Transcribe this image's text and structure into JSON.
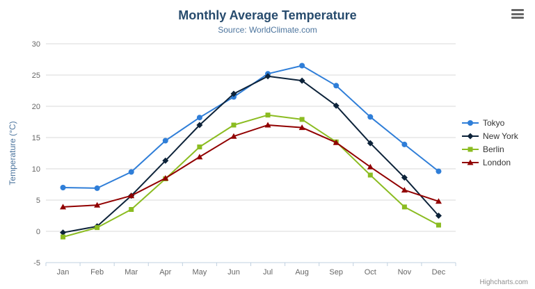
{
  "header": {
    "title": "Monthly Average Temperature",
    "subtitle": "Source: WorldClimate.com"
  },
  "credits": "Highcharts.com",
  "chart_data": {
    "type": "line",
    "title": "Monthly Average Temperature",
    "subtitle": "Source: WorldClimate.com",
    "xlabel": "",
    "ylabel": "Temperature (°C)",
    "ylim": [
      -5,
      30
    ],
    "y_tick_interval": 5,
    "grid": true,
    "legend_position": "right",
    "categories": [
      "Jan",
      "Feb",
      "Mar",
      "Apr",
      "May",
      "Jun",
      "Jul",
      "Aug",
      "Sep",
      "Oct",
      "Nov",
      "Dec"
    ],
    "series": [
      {
        "name": "Tokyo",
        "color": "#2f7ed8",
        "marker": "circle",
        "values": [
          7.0,
          6.9,
          9.5,
          14.5,
          18.2,
          21.5,
          25.2,
          26.5,
          23.3,
          18.3,
          13.9,
          9.6
        ]
      },
      {
        "name": "New York",
        "color": "#0d233a",
        "marker": "diamond",
        "values": [
          -0.2,
          0.8,
          5.7,
          11.3,
          17.0,
          22.0,
          24.8,
          24.1,
          20.1,
          14.1,
          8.6,
          2.5
        ]
      },
      {
        "name": "Berlin",
        "color": "#8bbc21",
        "marker": "square",
        "values": [
          -0.9,
          0.6,
          3.5,
          8.4,
          13.5,
          17.0,
          18.6,
          17.9,
          14.3,
          9.0,
          3.9,
          1.0
        ]
      },
      {
        "name": "London",
        "color": "#910000",
        "marker": "triangle",
        "values": [
          3.9,
          4.2,
          5.7,
          8.5,
          11.9,
          15.2,
          17.0,
          16.6,
          14.2,
          10.3,
          6.6,
          4.8
        ]
      }
    ],
    "colors": {
      "title": "#274b6d",
      "subtitle": "#4d759e",
      "axis_label": "#666666",
      "axis_title": "#4d759e",
      "gridline": "#d8d8d8",
      "axis_line": "#c0d0e0",
      "legend_text": "#333333",
      "credits_text": "#909090"
    }
  }
}
